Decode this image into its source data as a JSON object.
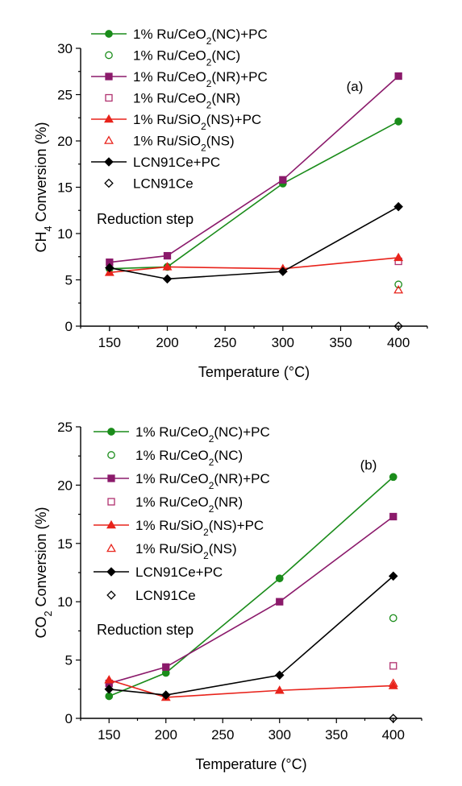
{
  "chart_data": [
    {
      "type": "line",
      "panel_label": "(a)",
      "annotation": "Reduction step",
      "xlabel": "Temperature (°C)",
      "ylabel_parts": [
        "CH",
        "4",
        " Conversion (%)"
      ],
      "xlim": [
        125,
        425
      ],
      "ylim": [
        0,
        30
      ],
      "xticks": [
        150,
        200,
        250,
        300,
        350,
        400
      ],
      "yticks": [
        0,
        5,
        10,
        15,
        20,
        25,
        30
      ],
      "series": [
        {
          "name": "1% Ru/CeO2(NC)+PC",
          "label_parts": [
            "1% Ru/CeO",
            "2",
            "(NC)+PC"
          ],
          "color": "#1a8c1a",
          "marker": "circle",
          "filled": true,
          "line": true,
          "x": [
            150,
            200,
            300,
            400
          ],
          "values": [
            6.2,
            6.4,
            15.4,
            22.1
          ]
        },
        {
          "name": "1% Ru/CeO2(NC)",
          "label_parts": [
            "1% Ru/CeO",
            "2",
            "(NC)"
          ],
          "color": "#1a8c1a",
          "marker": "circle",
          "filled": false,
          "line": false,
          "x": [
            400
          ],
          "values": [
            4.5
          ]
        },
        {
          "name": "1% Ru/CeO2(NR)+PC",
          "label_parts": [
            "1% Ru/CeO",
            "2",
            "(NR)+PC"
          ],
          "color": "#8b1a6b",
          "marker": "square",
          "filled": true,
          "line": true,
          "x": [
            150,
            200,
            300,
            400
          ],
          "values": [
            6.9,
            7.6,
            15.8,
            27.0
          ]
        },
        {
          "name": "1% Ru/CeO2(NR)",
          "label_parts": [
            "1% Ru/CeO",
            "2",
            "(NR)"
          ],
          "color": "#b0306e",
          "marker": "square",
          "filled": false,
          "line": false,
          "x": [
            400
          ],
          "values": [
            7.0
          ]
        },
        {
          "name": "1% Ru/SiO2(NS)+PC",
          "label_parts": [
            "1% Ru/SiO",
            "2",
            "(NS)+PC"
          ],
          "color": "#e8231b",
          "marker": "triangle",
          "filled": true,
          "line": true,
          "x": [
            150,
            200,
            300,
            400
          ],
          "values": [
            5.8,
            6.4,
            6.2,
            7.4
          ]
        },
        {
          "name": "1% Ru/SiO2(NS)",
          "label_parts": [
            "1% Ru/SiO",
            "2",
            "(NS)"
          ],
          "color": "#e8231b",
          "marker": "triangle",
          "filled": false,
          "line": false,
          "x": [
            400
          ],
          "values": [
            3.9
          ]
        },
        {
          "name": "LCN91Ce+PC",
          "label_parts": [
            "LCN91Ce+PC",
            "",
            ""
          ],
          "color": "#000000",
          "marker": "diamond",
          "filled": true,
          "line": true,
          "x": [
            150,
            200,
            300,
            400
          ],
          "values": [
            6.3,
            5.1,
            5.9,
            12.9
          ]
        },
        {
          "name": "LCN91Ce",
          "label_parts": [
            "LCN91Ce",
            "",
            ""
          ],
          "color": "#000000",
          "marker": "diamond",
          "filled": false,
          "line": false,
          "x": [
            400
          ],
          "values": [
            0.0
          ]
        }
      ]
    },
    {
      "type": "line",
      "panel_label": "(b)",
      "annotation": "Reduction step",
      "xlabel": "Temperature (°C)",
      "ylabel_parts": [
        "CO",
        "2",
        " Conversion (%)"
      ],
      "xlim": [
        125,
        425
      ],
      "ylim": [
        0,
        25
      ],
      "xticks": [
        150,
        200,
        250,
        300,
        350,
        400
      ],
      "yticks": [
        0,
        5,
        10,
        15,
        20,
        25
      ],
      "series": [
        {
          "name": "1% Ru/CeO2(NC)+PC",
          "label_parts": [
            "1% Ru/CeO",
            "2",
            "(NC)+PC"
          ],
          "color": "#1a8c1a",
          "marker": "circle",
          "filled": true,
          "line": true,
          "x": [
            150,
            200,
            300,
            400
          ],
          "values": [
            1.9,
            3.9,
            12.0,
            20.7
          ]
        },
        {
          "name": "1% Ru/CeO2(NC)",
          "label_parts": [
            "1% Ru/CeO",
            "2",
            "(NC)"
          ],
          "color": "#1a8c1a",
          "marker": "circle",
          "filled": false,
          "line": false,
          "x": [
            400
          ],
          "values": [
            8.6
          ]
        },
        {
          "name": "1% Ru/CeO2(NR)+PC",
          "label_parts": [
            "1% Ru/CeO",
            "2",
            "(NR)+PC"
          ],
          "color": "#8b1a6b",
          "marker": "square",
          "filled": true,
          "line": true,
          "x": [
            150,
            200,
            300,
            400
          ],
          "values": [
            3.0,
            4.4,
            10.0,
            17.3
          ]
        },
        {
          "name": "1% Ru/CeO2(NR)",
          "label_parts": [
            "1% Ru/CeO",
            "2",
            "(NR)"
          ],
          "color": "#b0306e",
          "marker": "square",
          "filled": false,
          "line": false,
          "x": [
            400
          ],
          "values": [
            4.5
          ]
        },
        {
          "name": "1% Ru/SiO2(NS)+PC",
          "label_parts": [
            "1% Ru/SiO",
            "2",
            "(NS)+PC"
          ],
          "color": "#e8231b",
          "marker": "triangle",
          "filled": true,
          "line": true,
          "x": [
            150,
            200,
            300,
            400
          ],
          "values": [
            3.3,
            1.8,
            2.4,
            2.8
          ]
        },
        {
          "name": "1% Ru/SiO2(NS)",
          "label_parts": [
            "1% Ru/SiO",
            "2",
            "(NS)"
          ],
          "color": "#e8231b",
          "marker": "triangle",
          "filled": false,
          "line": false,
          "x": [
            400
          ],
          "values": [
            3.0
          ]
        },
        {
          "name": "LCN91Ce+PC",
          "label_parts": [
            "LCN91Ce+PC",
            "",
            ""
          ],
          "color": "#000000",
          "marker": "diamond",
          "filled": true,
          "line": true,
          "x": [
            150,
            200,
            300,
            400
          ],
          "values": [
            2.5,
            2.0,
            3.7,
            12.2
          ]
        },
        {
          "name": "LCN91Ce",
          "label_parts": [
            "LCN91Ce",
            "",
            ""
          ],
          "color": "#000000",
          "marker": "diamond",
          "filled": false,
          "line": false,
          "x": [
            400
          ],
          "values": [
            0.0
          ]
        }
      ]
    }
  ],
  "colors": {
    "annotation": "#e8231b",
    "axis": "#000000",
    "background": "#ffffff"
  }
}
